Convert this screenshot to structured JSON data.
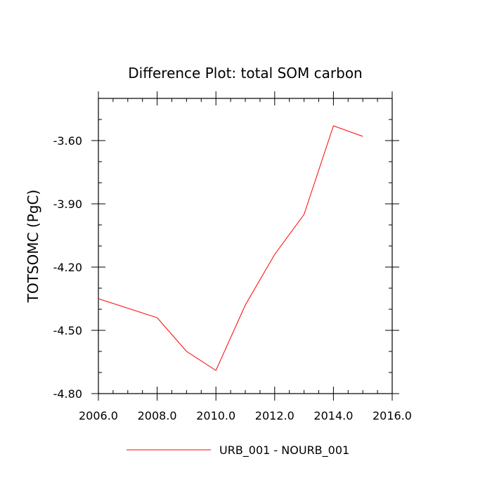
{
  "chart_data": {
    "type": "line",
    "title": "Difference Plot: total SOM carbon",
    "xlabel": "",
    "ylabel": "TOTSOMC  (PgC)",
    "xlim": [
      2006,
      2016
    ],
    "ylim": [
      -4.8,
      -3.4
    ],
    "x_ticks": [
      2006,
      2008,
      2010,
      2012,
      2014,
      2016
    ],
    "x_tick_labels": [
      "2006.0",
      "2008.0",
      "2010.0",
      "2012.0",
      "2014.0",
      "2016.0"
    ],
    "y_ticks": [
      -4.8,
      -4.5,
      -4.2,
      -3.9,
      -3.6
    ],
    "y_tick_labels": [
      "-4.80",
      "-4.50",
      "-4.20",
      "-3.90",
      "-3.60"
    ],
    "grid": false,
    "legend": "bottom",
    "series": [
      {
        "name": "URB_001 - NOURB_001",
        "color": "#ff0000",
        "x": [
          2006,
          2008,
          2009,
          2010,
          2011,
          2012,
          2013,
          2014,
          2015
        ],
        "values": [
          -4.35,
          -4.44,
          -4.6,
          -4.69,
          -4.38,
          -4.14,
          -3.95,
          -3.53,
          -3.58
        ]
      }
    ]
  }
}
